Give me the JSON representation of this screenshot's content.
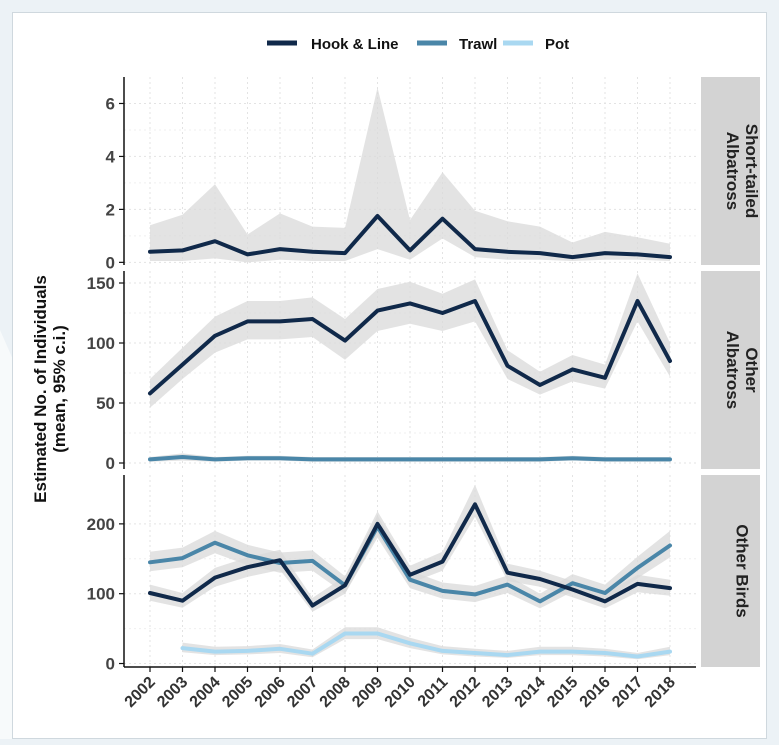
{
  "colors": {
    "hook_line": "#10294a",
    "trawl": "#4a86a8",
    "pot": "#a9d8f1",
    "band": "#d9d9d9",
    "strip_bg": "#d3d3d3",
    "grid": "#e3e3e3"
  },
  "chart_data": {
    "type": "line",
    "ylabel": "Estimated No. of Individuals",
    "ylabel2": "(mean, 95% c.i.)",
    "xlabel": "",
    "legend_position": "top",
    "grid": true,
    "legend": [
      "Hook & Line",
      "Trawl",
      "Pot"
    ],
    "x": [
      "2002",
      "2003",
      "2004",
      "2005",
      "2006",
      "2007",
      "2008",
      "2009",
      "2010",
      "2011",
      "2012",
      "2013",
      "2014",
      "2015",
      "2016",
      "2017",
      "2018"
    ],
    "panels": [
      {
        "strip_label": [
          "Short-tailed",
          "Albatross"
        ],
        "ylim": [
          -0.1,
          7.0
        ],
        "yticks": [
          0,
          2,
          4,
          6
        ],
        "series": [
          {
            "name": "Hook & Line",
            "values": [
              0.4,
              0.45,
              0.8,
              0.3,
              0.5,
              0.4,
              0.35,
              1.75,
              0.45,
              1.65,
              0.5,
              0.4,
              0.35,
              0.2,
              0.35,
              0.3,
              0.2
            ],
            "lower": [
              0.05,
              0.05,
              0.15,
              0.0,
              0.1,
              0.05,
              0.05,
              0.5,
              0.1,
              0.9,
              0.2,
              0.1,
              0.1,
              0.05,
              0.1,
              0.1,
              0.05
            ],
            "upper": [
              1.4,
              1.8,
              2.95,
              1.05,
              1.85,
              1.35,
              1.3,
              6.6,
              1.6,
              3.4,
              1.95,
              1.55,
              1.35,
              0.75,
              1.15,
              0.95,
              0.7
            ]
          }
        ]
      },
      {
        "strip_label": [
          "Other",
          "Albatross"
        ],
        "ylim": [
          -5,
          160
        ],
        "yticks": [
          0,
          50,
          100,
          150
        ],
        "series": [
          {
            "name": "Hook & Line",
            "values": [
              58,
              82,
              106,
              118,
              118,
              120,
              102,
              127,
              133,
              125,
              135,
              81,
              65,
              78,
              71,
              135,
              85
            ],
            "lower": [
              46,
              70,
              92,
              103,
              103,
              105,
              86,
              110,
              116,
              110,
              118,
              70,
              57,
              68,
              62,
              118,
              72
            ],
            "upper": [
              70,
              96,
              122,
              135,
              135,
              138,
              120,
              145,
              151,
              141,
              153,
              94,
              76,
              90,
              82,
              158,
              100
            ]
          },
          {
            "name": "Trawl",
            "values": [
              3,
              5,
              3,
              4,
              4,
              3,
              3,
              3,
              3,
              3,
              3,
              3,
              3,
              4,
              3,
              3,
              3
            ],
            "lower": [
              1,
              2,
              1,
              2,
              2,
              1,
              1,
              1,
              1,
              1,
              1,
              1,
              1,
              2,
              1,
              1,
              1
            ],
            "upper": [
              5,
              8,
              5,
              6,
              6,
              5,
              5,
              5,
              5,
              5,
              5,
              5,
              5,
              6,
              5,
              5,
              5
            ]
          }
        ]
      },
      {
        "strip_label": [
          "Other Birds"
        ],
        "ylim": [
          -5,
          270
        ],
        "yticks": [
          0,
          100,
          200
        ],
        "series": [
          {
            "name": "Hook & Line",
            "values": [
              101,
              90,
              123,
              138,
              148,
              83,
              112,
              200,
              127,
              146,
              228,
              130,
              121,
              106,
              89,
              114,
              108
            ],
            "lower": [
              90,
              80,
              110,
              124,
              134,
              74,
              100,
              185,
              115,
              133,
              210,
              118,
              110,
              95,
              79,
              102,
              97
            ],
            "upper": [
              113,
              101,
              137,
              152,
              163,
              94,
              125,
              218,
              140,
              160,
              256,
              143,
              133,
              118,
              100,
              127,
              120
            ]
          },
          {
            "name": "Trawl",
            "values": [
              145,
              151,
              173,
              155,
              144,
              147,
              112,
              196,
              120,
              104,
              99,
              113,
              89,
              115,
              101,
              137,
              169
            ],
            "lower": [
              132,
              138,
              158,
              141,
              130,
              133,
              100,
              180,
              108,
              93,
              88,
              101,
              79,
              103,
              90,
              122,
              152
            ],
            "upper": [
              160,
              166,
              190,
              170,
              159,
              162,
              125,
              212,
              133,
              116,
              111,
              126,
              100,
              128,
              113,
              153,
              190
            ]
          },
          {
            "name": "Pot",
            "values": [
              null,
              22,
              17,
              18,
              21,
              14,
              43,
              43,
              29,
              18,
              15,
              12,
              17,
              17,
              15,
              10,
              17
            ],
            "lower": [
              null,
              16,
              12,
              13,
              15,
              9,
              35,
              35,
              22,
              13,
              10,
              8,
              12,
              12,
              10,
              6,
              12
            ],
            "upper": [
              null,
              30,
              24,
              25,
              28,
              20,
              52,
              52,
              37,
              25,
              21,
              18,
              24,
              24,
              21,
              15,
              24
            ]
          }
        ]
      }
    ]
  }
}
